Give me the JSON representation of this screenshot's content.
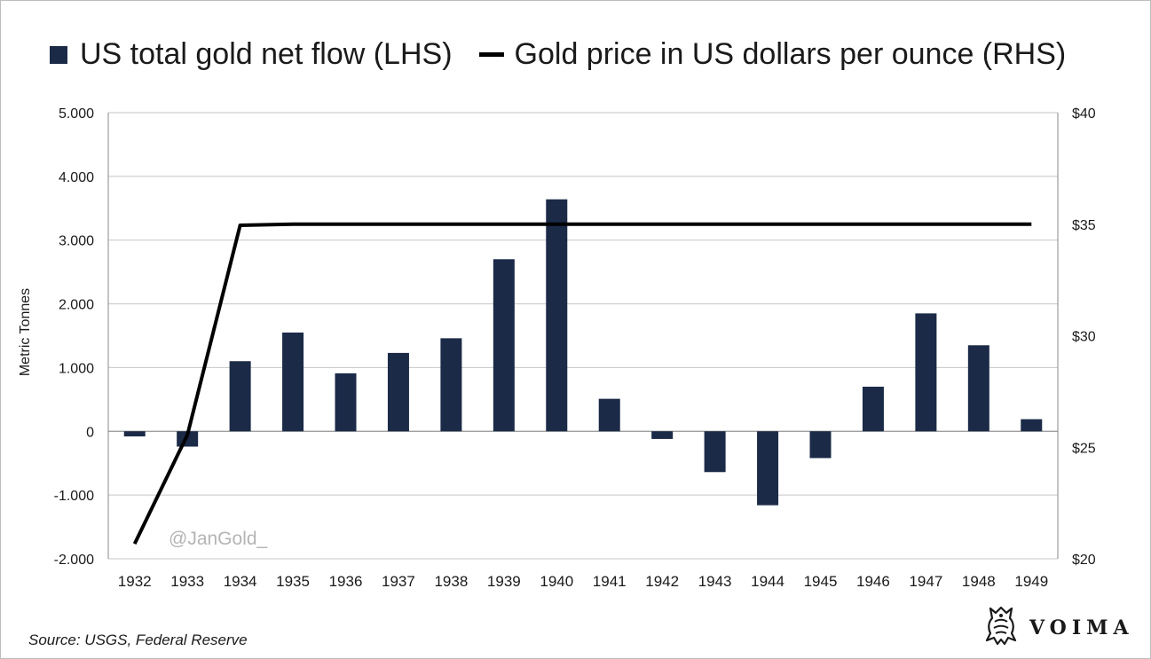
{
  "legend": {
    "bar_label": "US total gold net flow (LHS)",
    "line_label": "Gold price in US dollars per ounce (RHS)"
  },
  "source": "Source: USGS, Federal Reserve",
  "watermark": "@JanGold_",
  "brand": {
    "name": "VOIMA",
    "logo_icon": "lion-crest-icon"
  },
  "colors": {
    "bar": "#1b2a47",
    "line": "#000000",
    "grid": "#c6c6c6",
    "axis": "#8a8a8a"
  },
  "chart_data": {
    "type": "bar",
    "categories": [
      "1932",
      "1933",
      "1934",
      "1935",
      "1936",
      "1937",
      "1938",
      "1939",
      "1940",
      "1941",
      "1942",
      "1943",
      "1944",
      "1945",
      "1946",
      "1947",
      "1948",
      "1949"
    ],
    "series": [
      {
        "name": "US total gold net flow (LHS)",
        "type": "bar",
        "axis": "left",
        "values": [
          -80,
          -240,
          1100,
          1550,
          910,
          1230,
          1460,
          2700,
          3640,
          510,
          -120,
          -640,
          -1160,
          -420,
          700,
          1850,
          1350,
          190
        ]
      },
      {
        "name": "Gold price in US dollars per ounce (RHS)",
        "type": "line",
        "axis": "right",
        "values": [
          20.67,
          25.56,
          34.95,
          35.0,
          35.0,
          35.0,
          35.0,
          35.0,
          35.0,
          35.0,
          35.0,
          35.0,
          35.0,
          35.0,
          35.0,
          35.0,
          35.0,
          35.0
        ]
      }
    ],
    "ylabel": "Metric Tonnes",
    "ylim": [
      -2000,
      5000
    ],
    "yticks": [
      -2000,
      -1000,
      0,
      1000,
      2000,
      3000,
      4000,
      5000
    ],
    "ytick_labels": [
      "-2.000",
      "-1.000",
      "0",
      "1.000",
      "2.000",
      "3.000",
      "4.000",
      "5.000"
    ],
    "y2lim": [
      20,
      40
    ],
    "y2ticks": [
      20,
      25,
      30,
      35,
      40
    ],
    "y2tick_labels": [
      "$20",
      "$25",
      "$30",
      "$35",
      "$40"
    ],
    "grid": true,
    "legend_position": "top"
  }
}
